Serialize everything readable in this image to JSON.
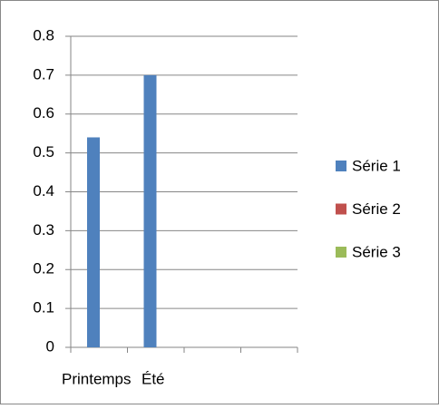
{
  "chart_data": {
    "type": "bar",
    "categories": [
      "Printemps",
      "Été",
      null,
      null
    ],
    "series": [
      {
        "name": "Série 1",
        "color": "#4f81bd",
        "values": [
          0.54,
          0.7,
          null,
          null
        ]
      },
      {
        "name": "Série 2",
        "color": "#c0504d",
        "values": [
          null,
          null,
          null,
          null
        ]
      },
      {
        "name": "Série 3",
        "color": "#9bbb59",
        "values": [
          null,
          null,
          null,
          null
        ]
      }
    ],
    "ylim": [
      0,
      0.8
    ],
    "yticks": [
      0,
      0.1,
      0.2,
      0.3,
      0.4,
      0.5,
      0.6,
      0.7,
      0.8
    ],
    "grid": true,
    "legend": "right"
  }
}
